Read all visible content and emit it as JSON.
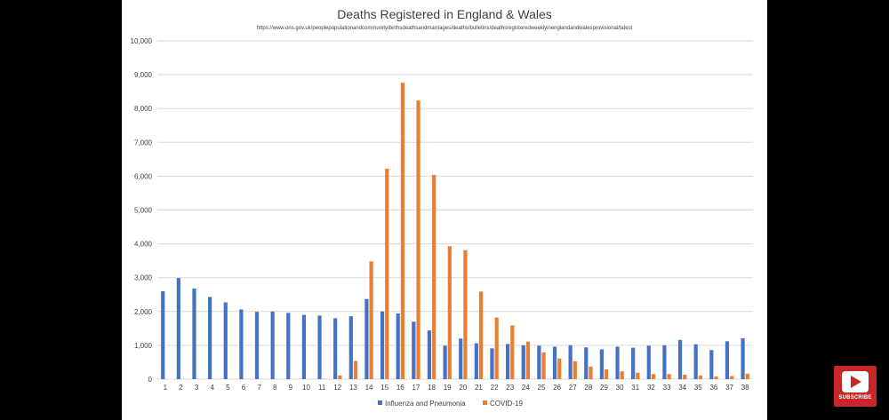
{
  "subscribe": {
    "label": "SUBSCRIBE",
    "icon": "play-icon",
    "color": "#c8272a"
  },
  "chart_data": {
    "type": "bar",
    "title": "Deaths Registered in England & Wales",
    "subtitle": "https://www.ons.gov.uk/peoplepopulationandcommunity/birthsdeathsandmarriages/deaths/bulletins/deathsregisteredweeklyinenglandandwalesprovisional/latest",
    "xlabel": "",
    "ylabel": "",
    "ylim": [
      0,
      10000
    ],
    "yticks": [
      "0",
      "1,000",
      "2,000",
      "3,000",
      "4,000",
      "5,000",
      "6,000",
      "7,000",
      "8,000",
      "9,000",
      "10,000"
    ],
    "grid": true,
    "legend_position": "bottom",
    "categories": [
      "1",
      "2",
      "3",
      "4",
      "5",
      "6",
      "7",
      "8",
      "9",
      "10",
      "11",
      "12",
      "13",
      "14",
      "15",
      "16",
      "17",
      "18",
      "19",
      "20",
      "21",
      "22",
      "23",
      "24",
      "25",
      "26",
      "27",
      "28",
      "29",
      "30",
      "31",
      "32",
      "33",
      "34",
      "35",
      "36",
      "37",
      "38"
    ],
    "series": [
      {
        "name": "Influenza and Pneumonia",
        "color": "#4472c4",
        "values": [
          2600,
          2990,
          2680,
          2430,
          2270,
          2060,
          1990,
          2000,
          1960,
          1900,
          1880,
          1800,
          1860,
          2370,
          2000,
          1940,
          1700,
          1440,
          990,
          1200,
          1060,
          910,
          1040,
          1000,
          990,
          960,
          1000,
          940,
          880,
          960,
          930,
          990,
          1000,
          1160,
          1030,
          860,
          1120,
          1210
        ]
      },
      {
        "name": "COVID-19",
        "color": "#ed7d31",
        "values": [
          0,
          0,
          0,
          0,
          0,
          0,
          0,
          0,
          0,
          0,
          10,
          110,
          540,
          3480,
          6220,
          8760,
          8240,
          6040,
          3930,
          3810,
          2590,
          1820,
          1590,
          1110,
          790,
          610,
          530,
          370,
          290,
          230,
          190,
          150,
          150,
          130,
          110,
          80,
          90,
          160
        ]
      }
    ]
  }
}
